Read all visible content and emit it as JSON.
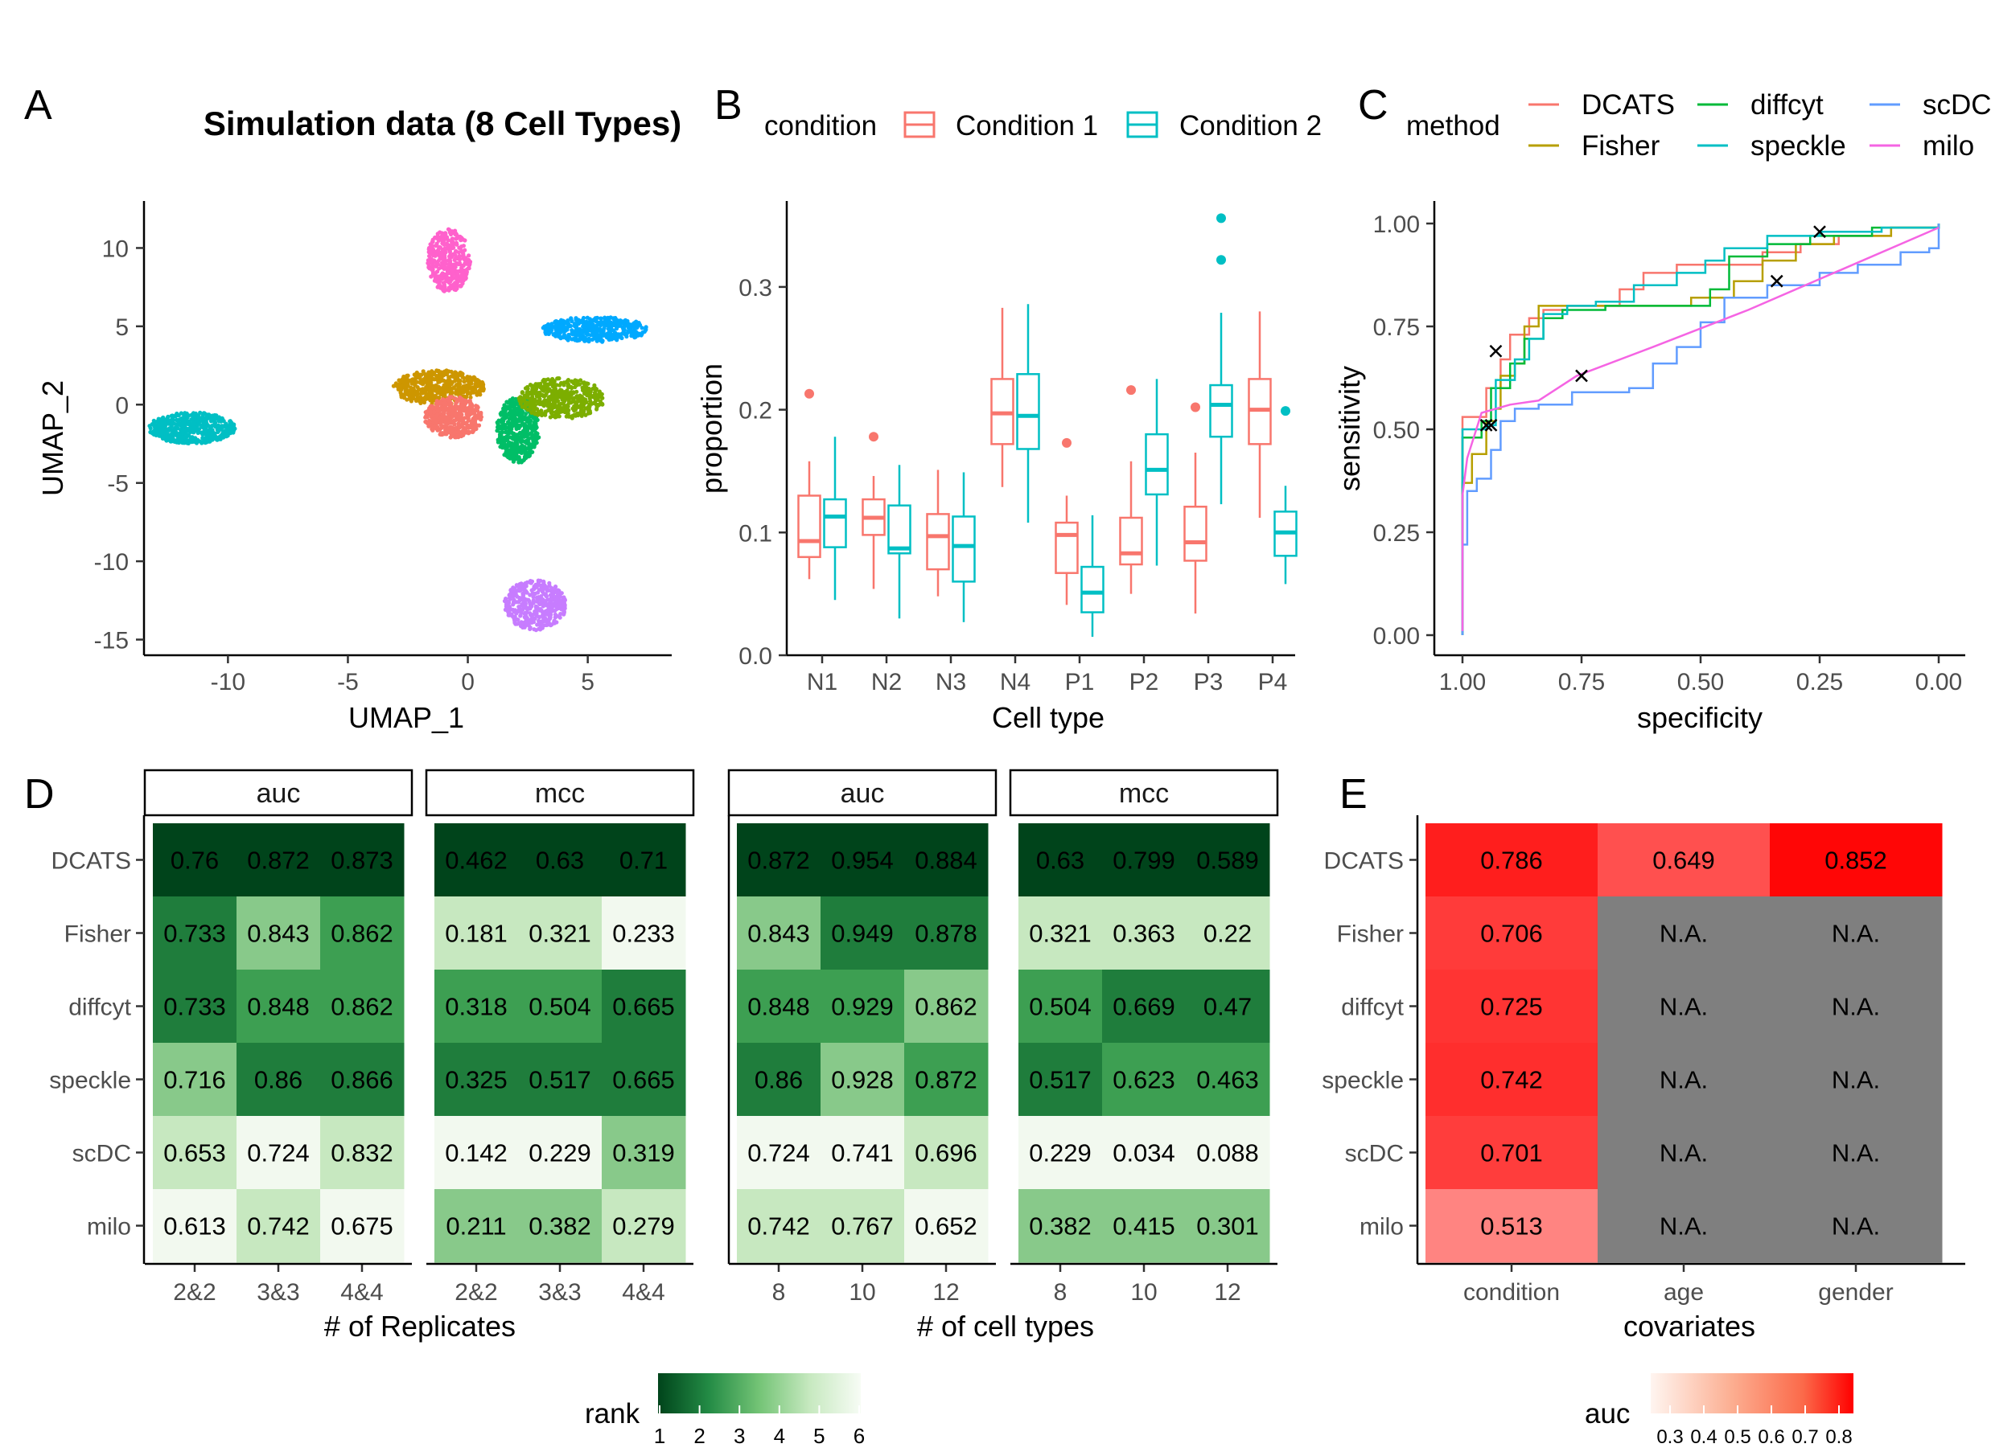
{
  "panels": {
    "a": "A",
    "b": "B",
    "c": "C",
    "d": "D",
    "e": "E"
  },
  "umap": {
    "title": "Simulation data (8 Cell Types)",
    "xlabel": "UMAP_1",
    "ylabel": "UMAP_2",
    "xticks": [
      "-10",
      "-5",
      "0",
      "5"
    ],
    "yticks": [
      "10",
      "5",
      "0",
      "-5",
      "-10",
      "-15"
    ],
    "clusters": [
      {
        "cx": -11.5,
        "cy": -1.5,
        "rx": 1.8,
        "ry": 1.0,
        "color": "#00bfc4",
        "n": 520
      },
      {
        "cx": -0.8,
        "cy": 9.2,
        "rx": 0.9,
        "ry": 2.0,
        "color": "#ff61cc",
        "n": 360
      },
      {
        "cx": 5.3,
        "cy": 4.8,
        "rx": 2.2,
        "ry": 0.8,
        "color": "#00a9ff",
        "n": 430
      },
      {
        "cx": 2.8,
        "cy": -12.8,
        "rx": 1.3,
        "ry": 1.6,
        "color": "#c77cff",
        "n": 400
      },
      {
        "cx": -1.2,
        "cy": 1.1,
        "rx": 1.9,
        "ry": 1.1,
        "color": "#cd9600",
        "n": 470
      },
      {
        "cx": -0.6,
        "cy": -0.8,
        "rx": 1.2,
        "ry": 1.3,
        "color": "#f8766d",
        "n": 420
      },
      {
        "cx": 2.1,
        "cy": -1.6,
        "rx": 0.9,
        "ry": 2.1,
        "color": "#00be67",
        "n": 450
      },
      {
        "cx": 3.9,
        "cy": 0.4,
        "rx": 1.8,
        "ry": 1.3,
        "color": "#7cae00",
        "n": 470
      }
    ]
  },
  "chart_data": [
    {
      "type": "scatter",
      "title": "Simulation data (8 Cell Types)",
      "xlabel": "UMAP_1",
      "ylabel": "UMAP_2",
      "xlim": [
        -13.5,
        8.5
      ],
      "ylim": [
        -16,
        13
      ]
    },
    {
      "type": "box",
      "xlabel": "Cell type",
      "ylabel": "proportion",
      "ylim": [
        0,
        0.37
      ],
      "yticks": [
        "0.0",
        "0.1",
        "0.2",
        "0.3"
      ],
      "categories": [
        "N1",
        "N2",
        "N3",
        "N4",
        "P1",
        "P2",
        "P3",
        "P4"
      ],
      "legend_title": "condition",
      "series": [
        {
          "name": "Condition 1",
          "color": "#f8766d",
          "boxes": [
            {
              "min": 0.062,
              "q1": 0.08,
              "med": 0.093,
              "q3": 0.13,
              "max": 0.158,
              "out": [
                0.213
              ]
            },
            {
              "min": 0.054,
              "q1": 0.098,
              "med": 0.112,
              "q3": 0.127,
              "max": 0.146,
              "out": [
                0.178
              ]
            },
            {
              "min": 0.048,
              "q1": 0.07,
              "med": 0.097,
              "q3": 0.115,
              "max": 0.151,
              "out": []
            },
            {
              "min": 0.137,
              "q1": 0.172,
              "med": 0.197,
              "q3": 0.225,
              "max": 0.283,
              "out": []
            },
            {
              "min": 0.041,
              "q1": 0.067,
              "med": 0.098,
              "q3": 0.108,
              "max": 0.13,
              "out": [
                0.173
              ]
            },
            {
              "min": 0.05,
              "q1": 0.074,
              "med": 0.083,
              "q3": 0.112,
              "max": 0.158,
              "out": [
                0.216
              ]
            },
            {
              "min": 0.034,
              "q1": 0.077,
              "med": 0.092,
              "q3": 0.121,
              "max": 0.165,
              "out": [
                0.202
              ]
            },
            {
              "min": 0.112,
              "q1": 0.172,
              "med": 0.2,
              "q3": 0.225,
              "max": 0.28,
              "out": []
            }
          ]
        },
        {
          "name": "Condition 2",
          "color": "#00bfc4",
          "boxes": [
            {
              "min": 0.045,
              "q1": 0.088,
              "med": 0.113,
              "q3": 0.127,
              "max": 0.178,
              "out": []
            },
            {
              "min": 0.03,
              "q1": 0.083,
              "med": 0.087,
              "q3": 0.122,
              "max": 0.155,
              "out": []
            },
            {
              "min": 0.027,
              "q1": 0.06,
              "med": 0.089,
              "q3": 0.113,
              "max": 0.149,
              "out": []
            },
            {
              "min": 0.108,
              "q1": 0.168,
              "med": 0.195,
              "q3": 0.229,
              "max": 0.286,
              "out": []
            },
            {
              "min": 0.015,
              "q1": 0.035,
              "med": 0.051,
              "q3": 0.072,
              "max": 0.114,
              "out": []
            },
            {
              "min": 0.073,
              "q1": 0.131,
              "med": 0.151,
              "q3": 0.18,
              "max": 0.225,
              "out": []
            },
            {
              "min": 0.123,
              "q1": 0.178,
              "med": 0.204,
              "q3": 0.22,
              "max": 0.279,
              "out": [
                0.322,
                0.356
              ]
            },
            {
              "min": 0.058,
              "q1": 0.081,
              "med": 0.1,
              "q3": 0.117,
              "max": 0.138,
              "out": [
                0.199
              ]
            }
          ]
        }
      ]
    },
    {
      "type": "line",
      "xlabel": "specificity",
      "ylabel": "sensitivity",
      "xlim": [
        1.0,
        0.0
      ],
      "ylim": [
        0,
        1
      ],
      "xticks": [
        "1.00",
        "0.75",
        "0.50",
        "0.25",
        "0.00"
      ],
      "yticks": [
        "0.00",
        "0.25",
        "0.50",
        "0.75",
        "1.00"
      ],
      "legend_title": "method",
      "series": [
        {
          "name": "DCATS",
          "color": "#f8766d",
          "points": [
            [
              1.0,
              0.0
            ],
            [
              1.0,
              0.44
            ],
            [
              1.0,
              0.53
            ],
            [
              0.96,
              0.53
            ],
            [
              0.95,
              0.6
            ],
            [
              0.92,
              0.67
            ],
            [
              0.9,
              0.73
            ],
            [
              0.86,
              0.77
            ],
            [
              0.83,
              0.79
            ],
            [
              0.78,
              0.8
            ],
            [
              0.7,
              0.8
            ],
            [
              0.67,
              0.84
            ],
            [
              0.62,
              0.88
            ],
            [
              0.55,
              0.9
            ],
            [
              0.42,
              0.9
            ],
            [
              0.37,
              0.93
            ],
            [
              0.29,
              0.95
            ],
            [
              0.21,
              0.97
            ],
            [
              0.1,
              0.99
            ],
            [
              0.0,
              1.0
            ]
          ]
        },
        {
          "name": "Fisher",
          "color": "#b79f00",
          "points": [
            [
              1.0,
              0.0
            ],
            [
              1.0,
              0.37
            ],
            [
              0.98,
              0.44
            ],
            [
              0.95,
              0.52
            ],
            [
              0.93,
              0.55
            ],
            [
              0.92,
              0.63
            ],
            [
              0.89,
              0.66
            ],
            [
              0.87,
              0.75
            ],
            [
              0.84,
              0.8
            ],
            [
              0.72,
              0.8
            ],
            [
              0.64,
              0.8
            ],
            [
              0.52,
              0.82
            ],
            [
              0.43,
              0.86
            ],
            [
              0.37,
              0.91
            ],
            [
              0.3,
              0.95
            ],
            [
              0.22,
              0.97
            ],
            [
              0.1,
              0.99
            ],
            [
              0.0,
              1.0
            ]
          ]
        },
        {
          "name": "diffcyt",
          "color": "#00ba38",
          "points": [
            [
              1.0,
              0.0
            ],
            [
              1.0,
              0.48
            ],
            [
              0.96,
              0.52
            ],
            [
              0.94,
              0.6
            ],
            [
              0.9,
              0.66
            ],
            [
              0.87,
              0.72
            ],
            [
              0.83,
              0.77
            ],
            [
              0.79,
              0.79
            ],
            [
              0.7,
              0.8
            ],
            [
              0.6,
              0.8
            ],
            [
              0.48,
              0.84
            ],
            [
              0.44,
              0.92
            ],
            [
              0.36,
              0.95
            ],
            [
              0.27,
              0.97
            ],
            [
              0.14,
              0.99
            ],
            [
              0.0,
              1.0
            ]
          ]
        },
        {
          "name": "speckle",
          "color": "#00bfc4",
          "points": [
            [
              1.0,
              0.0
            ],
            [
              1.0,
              0.5
            ],
            [
              0.95,
              0.51
            ],
            [
              0.93,
              0.62
            ],
            [
              0.89,
              0.67
            ],
            [
              0.86,
              0.72
            ],
            [
              0.83,
              0.78
            ],
            [
              0.78,
              0.8
            ],
            [
              0.72,
              0.81
            ],
            [
              0.64,
              0.85
            ],
            [
              0.55,
              0.88
            ],
            [
              0.49,
              0.91
            ],
            [
              0.45,
              0.94
            ],
            [
              0.36,
              0.97
            ],
            [
              0.25,
              0.98
            ],
            [
              0.12,
              0.99
            ],
            [
              0.0,
              1.0
            ]
          ]
        },
        {
          "name": "scDC",
          "color": "#619cff",
          "points": [
            [
              1.0,
              0.0
            ],
            [
              1.0,
              0.22
            ],
            [
              0.99,
              0.35
            ],
            [
              0.97,
              0.38
            ],
            [
              0.94,
              0.45
            ],
            [
              0.92,
              0.52
            ],
            [
              0.89,
              0.55
            ],
            [
              0.84,
              0.56
            ],
            [
              0.77,
              0.59
            ],
            [
              0.65,
              0.6
            ],
            [
              0.6,
              0.66
            ],
            [
              0.55,
              0.7
            ],
            [
              0.5,
              0.76
            ],
            [
              0.45,
              0.82
            ],
            [
              0.36,
              0.85
            ],
            [
              0.25,
              0.88
            ],
            [
              0.17,
              0.9
            ],
            [
              0.08,
              0.93
            ],
            [
              0.02,
              0.94
            ],
            [
              0.0,
              1.0
            ]
          ]
        },
        {
          "name": "milo",
          "color": "#f564e3",
          "points": [
            [
              1.0,
              0.01
            ],
            [
              1.0,
              0.34
            ],
            [
              0.99,
              0.43
            ],
            [
              0.96,
              0.54
            ],
            [
              0.9,
              0.56
            ],
            [
              0.84,
              0.57
            ],
            [
              0.76,
              0.63
            ],
            [
              0.6,
              0.7
            ],
            [
              0.4,
              0.79
            ],
            [
              0.2,
              0.89
            ],
            [
              0.0,
              0.99
            ]
          ]
        }
      ],
      "markers": [
        [
          0.95,
          0.51
        ],
        [
          0.94,
          0.51
        ],
        [
          0.93,
          0.69
        ],
        [
          0.75,
          0.63
        ],
        [
          0.34,
          0.86
        ],
        [
          0.25,
          0.98
        ]
      ]
    },
    {
      "type": "heatmap",
      "xlabel": "# of Replicates",
      "facets": [
        "auc",
        "mcc"
      ],
      "columns": [
        "2&2",
        "3&3",
        "4&4"
      ],
      "rows": [
        "DCATS",
        "Fisher",
        "diffcyt",
        "speckle",
        "scDC",
        "milo"
      ],
      "auc": [
        [
          "0.76",
          "0.872",
          "0.873"
        ],
        [
          "0.733",
          "0.843",
          "0.862"
        ],
        [
          "0.733",
          "0.848",
          "0.862"
        ],
        [
          "0.716",
          "0.86",
          "0.866"
        ],
        [
          "0.653",
          "0.724",
          "0.832"
        ],
        [
          "0.613",
          "0.742",
          "0.675"
        ]
      ],
      "auc_rank": [
        [
          1,
          1,
          1
        ],
        [
          2,
          4,
          3
        ],
        [
          2,
          3,
          3
        ],
        [
          4,
          2,
          2
        ],
        [
          5,
          6,
          5
        ],
        [
          6,
          5,
          6
        ]
      ],
      "mcc": [
        [
          "0.462",
          "0.63",
          "0.71"
        ],
        [
          "0.181",
          "0.321",
          "0.233"
        ],
        [
          "0.318",
          "0.504",
          "0.665"
        ],
        [
          "0.325",
          "0.517",
          "0.665"
        ],
        [
          "0.142",
          "0.229",
          "0.319"
        ],
        [
          "0.211",
          "0.382",
          "0.279"
        ]
      ],
      "mcc_rank": [
        [
          1,
          1,
          1
        ],
        [
          5,
          5,
          6
        ],
        [
          3,
          3,
          2
        ],
        [
          2,
          2,
          2
        ],
        [
          6,
          6,
          4
        ],
        [
          4,
          4,
          5
        ]
      ]
    },
    {
      "type": "heatmap",
      "xlabel": "# of cell types",
      "facets": [
        "auc",
        "mcc"
      ],
      "columns": [
        "8",
        "10",
        "12"
      ],
      "rows": [
        "DCATS",
        "Fisher",
        "diffcyt",
        "speckle",
        "scDC",
        "milo"
      ],
      "auc": [
        [
          "0.872",
          "0.954",
          "0.884"
        ],
        [
          "0.843",
          "0.949",
          "0.878"
        ],
        [
          "0.848",
          "0.929",
          "0.862"
        ],
        [
          "0.86",
          "0.928",
          "0.872"
        ],
        [
          "0.724",
          "0.741",
          "0.696"
        ],
        [
          "0.742",
          "0.767",
          "0.652"
        ]
      ],
      "auc_rank": [
        [
          1,
          1,
          1
        ],
        [
          4,
          2,
          2
        ],
        [
          3,
          3,
          4
        ],
        [
          2,
          4,
          3
        ],
        [
          6,
          6,
          5
        ],
        [
          5,
          5,
          6
        ]
      ],
      "mcc": [
        [
          "0.63",
          "0.799",
          "0.589"
        ],
        [
          "0.321",
          "0.363",
          "0.22"
        ],
        [
          "0.504",
          "0.669",
          "0.47"
        ],
        [
          "0.517",
          "0.623",
          "0.463"
        ],
        [
          "0.229",
          "0.034",
          "0.088"
        ],
        [
          "0.382",
          "0.415",
          "0.301"
        ]
      ],
      "mcc_rank": [
        [
          1,
          1,
          1
        ],
        [
          5,
          5,
          5
        ],
        [
          3,
          2,
          2
        ],
        [
          2,
          3,
          3
        ],
        [
          6,
          6,
          6
        ],
        [
          4,
          4,
          4
        ]
      ]
    },
    {
      "type": "heatmap",
      "xlabel": "covariates",
      "columns": [
        "condition",
        "age",
        "gender"
      ],
      "rows": [
        "DCATS",
        "Fisher",
        "diffcyt",
        "speckle",
        "scDC",
        "milo"
      ],
      "values": [
        [
          "0.786",
          "0.649",
          "0.852"
        ],
        [
          "0.706",
          "N.A.",
          "N.A."
        ],
        [
          "0.725",
          "N.A.",
          "N.A."
        ],
        [
          "0.742",
          "N.A.",
          "N.A."
        ],
        [
          "0.701",
          "N.A.",
          "N.A."
        ],
        [
          "0.513",
          "N.A.",
          "N.A."
        ]
      ]
    }
  ],
  "rank_legend": {
    "title": "rank",
    "labels": [
      "1",
      "2",
      "3",
      "4",
      "5",
      "6"
    ],
    "low": "#00441b",
    "high": "#f7fcf5"
  },
  "auc_legend": {
    "title": "auc",
    "labels": [
      "0.3",
      "0.4",
      "0.5",
      "0.6",
      "0.7",
      "0.8"
    ],
    "low": "#fff5f0",
    "high": "#ff0000"
  },
  "na_color": "#7f7f7f"
}
